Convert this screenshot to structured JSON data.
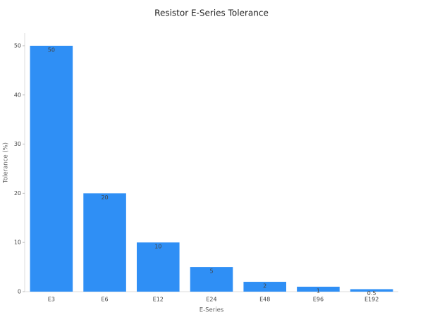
{
  "chart_data": {
    "type": "bar",
    "title": "Resistor E-Series Tolerance",
    "x_label": "E-Series",
    "y_label": "Tolerance (%)",
    "categories": [
      "E3",
      "E6",
      "E12",
      "E24",
      "E48",
      "E96",
      "E192"
    ],
    "values": [
      50,
      20,
      10,
      5,
      2,
      1,
      0.5
    ],
    "color": "#2f8ff5",
    "ylim": [
      0,
      52.5
    ],
    "yticks": [
      0,
      10,
      20,
      30,
      40,
      50
    ],
    "grid": false
  }
}
